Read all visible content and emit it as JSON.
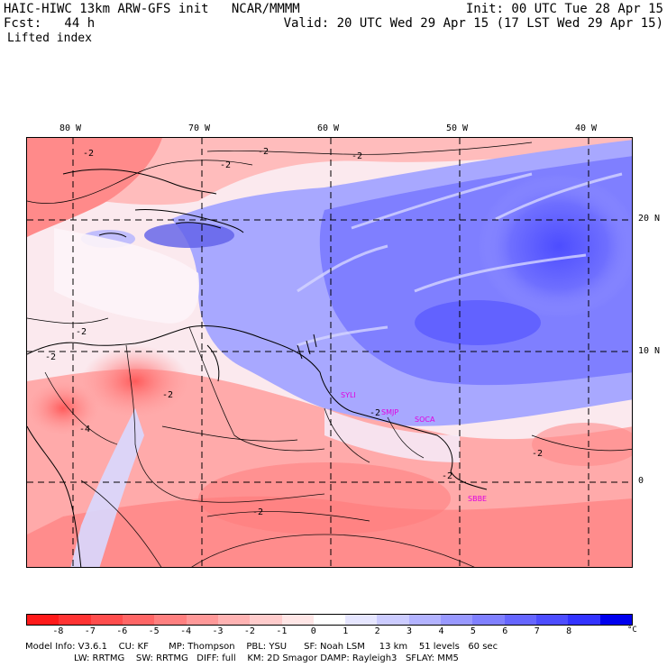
{
  "header": {
    "model_title": "HAIC-HIWC 13km ARW-GFS init   NCAR/MMMM",
    "init_time": "Init: 00 UTC Tue 28 Apr 15",
    "forecast": "Fcst:   44 h",
    "valid_time": "Valid: 20 UTC Wed 29 Apr 15 (17 LST Wed 29 Apr 15)",
    "field_name": "Lifted index"
  },
  "map": {
    "lon_labels": [
      "80 W",
      "70 W",
      "60 W",
      "50 W",
      "40 W"
    ],
    "lat_labels": [
      "20 N",
      "10 N",
      "0"
    ],
    "lon_values": [
      -80,
      -70,
      -60,
      -50,
      -40
    ],
    "lat_values": [
      20,
      10,
      0
    ],
    "lon_range": [
      -83.5,
      -36.3
    ],
    "lat_range": [
      -6.8,
      25.5
    ],
    "contour_labels": [
      "-2",
      "-2",
      "-2",
      "-2",
      "-2",
      "-2",
      "-4",
      "-2",
      "-2",
      "-2",
      "-2",
      "-2"
    ],
    "stations": [
      "SYLI",
      "SMJP",
      "SOCA",
      "SBBE"
    ]
  },
  "colorbar": {
    "unit": "°C",
    "tick_labels": [
      "-8",
      "-7",
      "-6",
      "-5",
      "-4",
      "-3",
      "-2",
      "-1",
      "0",
      "1",
      "2",
      "3",
      "4",
      "5",
      "6",
      "7",
      "8"
    ],
    "colors": [
      "#ff1a1a",
      "#ff3333",
      "#ff4d4d",
      "#ff6666",
      "#ff8080",
      "#ff9999",
      "#ffb3b3",
      "#ffcccc",
      "#ffe6e6",
      "#ffffff",
      "#e6e6ff",
      "#ccccff",
      "#b3b3ff",
      "#9999ff",
      "#8080ff",
      "#6666ff",
      "#4d4dff",
      "#3333ff",
      "#0000ee"
    ]
  },
  "footer": {
    "line1": "Model Info: V3.6.1    CU: KF       MP: Thompson    PBL: YSU      SF: Noah LSM     13 km    51 levels   60 sec",
    "line2": "                 LW: RRTMG    SW: RRTMG   DIFF: full    KM: 2D Smagor DAMP: Rayleigh3   SFLAY: MM5"
  }
}
